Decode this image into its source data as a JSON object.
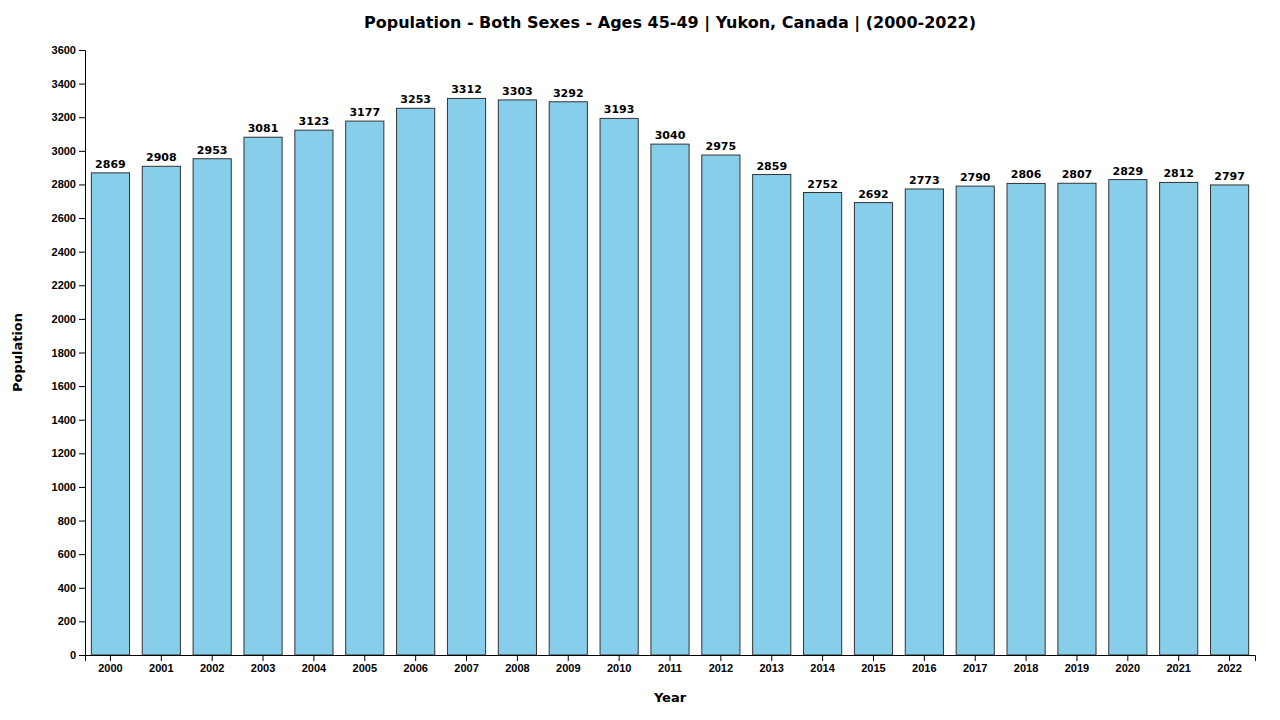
{
  "chart_data": {
    "type": "bar",
    "title": "Population - Both Sexes - Ages 45-49 | Yukon, Canada |  (2000-2022)",
    "x_label": "Year",
    "y_label": "Population",
    "categories": [
      "2000",
      "2001",
      "2002",
      "2003",
      "2004",
      "2005",
      "2006",
      "2007",
      "2008",
      "2009",
      "2010",
      "2011",
      "2012",
      "2013",
      "2014",
      "2015",
      "2016",
      "2017",
      "2018",
      "2019",
      "2020",
      "2021",
      "2022"
    ],
    "values": [
      2869,
      2908,
      2953,
      3081,
      3123,
      3177,
      3253,
      3312,
      3303,
      3292,
      3193,
      3040,
      2975,
      2859,
      2752,
      2692,
      2773,
      2790,
      2806,
      2807,
      2829,
      2812,
      2797
    ],
    "color": "#87CEEB",
    "ylim": [
      0,
      3600
    ],
    "yticks": [
      0,
      200,
      400,
      600,
      800,
      1000,
      1200,
      1400,
      1600,
      1800,
      2000,
      2200,
      2400,
      2600,
      2800,
      3000,
      3200,
      3400,
      3600
    ],
    "grid": false,
    "data_labels": true
  }
}
